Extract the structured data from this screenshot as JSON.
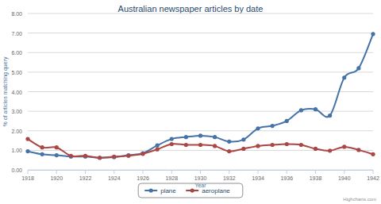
{
  "chart_data": {
    "type": "line",
    "title": "Australian newspaper articles by date",
    "x_label": "Year",
    "y_label": "% of articles matching query",
    "x": [
      1918,
      1919,
      1920,
      1921,
      1922,
      1923,
      1924,
      1925,
      1926,
      1927,
      1928,
      1929,
      1930,
      1931,
      1932,
      1933,
      1934,
      1935,
      1936,
      1937,
      1938,
      1939,
      1940,
      1941,
      1942
    ],
    "series": [
      {
        "name": "plane",
        "color": "#4572a7",
        "marker": "circle",
        "line_style": "smooth",
        "values": [
          0.95,
          0.8,
          0.75,
          0.68,
          0.68,
          0.62,
          0.65,
          0.75,
          0.85,
          1.25,
          1.58,
          1.68,
          1.75,
          1.68,
          1.45,
          1.55,
          2.12,
          2.25,
          2.5,
          3.05,
          3.1,
          2.78,
          4.72,
          5.2,
          6.95
        ]
      },
      {
        "name": "aeroplane",
        "color": "#aa4643",
        "marker": "circle",
        "line_style": "smooth",
        "values": [
          1.58,
          1.15,
          1.15,
          0.72,
          0.72,
          0.62,
          0.68,
          0.72,
          0.82,
          1.05,
          1.32,
          1.28,
          1.28,
          1.22,
          0.95,
          1.08,
          1.22,
          1.28,
          1.32,
          1.28,
          1.08,
          0.98,
          1.18,
          1.02,
          0.8
        ]
      }
    ],
    "xlim": [
      1918,
      1942
    ],
    "xticks": [
      1918,
      1920,
      1922,
      1924,
      1926,
      1928,
      1930,
      1932,
      1934,
      1936,
      1938,
      1940,
      1942
    ],
    "ylim": [
      0,
      8
    ],
    "yticks": [
      {
        "value": 0,
        "label": "0.00"
      },
      {
        "value": 1,
        "label": "1.00"
      },
      {
        "value": 2,
        "label": "2.00"
      },
      {
        "value": 3,
        "label": "3.00"
      },
      {
        "value": 4,
        "label": "4.00"
      },
      {
        "value": 5,
        "label": "5.00"
      },
      {
        "value": 6,
        "label": "6.00"
      },
      {
        "value": 7,
        "label": "7.00"
      },
      {
        "value": 8,
        "label": "8.00"
      }
    ],
    "grid": true,
    "legend": "bottom",
    "annotations": [
      "Highcharts.com"
    ]
  }
}
